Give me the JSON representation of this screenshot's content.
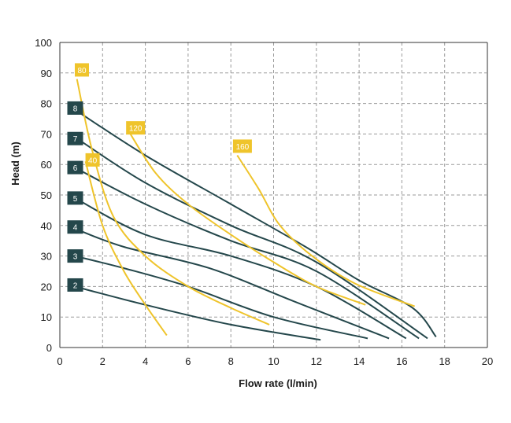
{
  "chart_data": {
    "type": "line",
    "title": "",
    "xlabel": "Flow rate (l/min)",
    "ylabel": "Head (m)",
    "xlim": [
      0,
      20
    ],
    "ylim": [
      0,
      100
    ],
    "x_ticks": [
      0,
      2,
      4,
      6,
      8,
      10,
      12,
      14,
      16,
      18,
      20
    ],
    "y_ticks": [
      0,
      10,
      20,
      30,
      40,
      50,
      60,
      70,
      80,
      90,
      100
    ],
    "grid": true,
    "colors": {
      "pressure": "#24474b",
      "air": "#efc42b",
      "grid": "#9a9a9a",
      "axis": "#333333"
    },
    "pressure_curves": [
      {
        "name": "2",
        "label_pos": [
          0.35,
          20.5
        ],
        "points": [
          [
            0.7,
            20
          ],
          [
            4,
            14
          ],
          [
            8,
            7.5
          ],
          [
            12.2,
            2.5
          ]
        ]
      },
      {
        "name": "3",
        "label_pos": [
          0.35,
          30
        ],
        "points": [
          [
            0.7,
            30
          ],
          [
            3,
            26
          ],
          [
            6,
            20
          ],
          [
            10,
            10
          ],
          [
            14.4,
            3
          ]
        ]
      },
      {
        "name": "4",
        "label_pos": [
          0.35,
          39.5
        ],
        "points": [
          [
            0.7,
            39
          ],
          [
            3,
            33
          ],
          [
            7,
            26
          ],
          [
            11,
            15
          ],
          [
            15.4,
            3
          ]
        ]
      },
      {
        "name": "5",
        "label_pos": [
          0.35,
          49
        ],
        "points": [
          [
            0.7,
            49
          ],
          [
            4,
            37
          ],
          [
            8,
            30
          ],
          [
            12,
            20
          ],
          [
            16.2,
            3
          ]
        ]
      },
      {
        "name": "6",
        "label_pos": [
          0.35,
          59
        ],
        "points": [
          [
            0.7,
            59
          ],
          [
            4,
            47
          ],
          [
            8,
            35
          ],
          [
            12,
            25
          ],
          [
            16.8,
            3
          ]
        ]
      },
      {
        "name": "7",
        "label_pos": [
          0.35,
          68.5
        ],
        "points": [
          [
            0.7,
            69
          ],
          [
            4,
            54
          ],
          [
            8,
            40
          ],
          [
            12,
            28
          ],
          [
            17.2,
            3
          ]
        ]
      },
      {
        "name": "8",
        "label_pos": [
          0.35,
          78.5
        ],
        "points": [
          [
            0.7,
            78
          ],
          [
            4,
            63
          ],
          [
            8,
            47
          ],
          [
            11.5,
            33
          ],
          [
            14,
            22
          ],
          [
            16.5,
            13
          ],
          [
            17.6,
            3.5
          ]
        ]
      }
    ],
    "air_curves": [
      {
        "name": "40",
        "label_pos": [
          1.2,
          61.5
        ],
        "points": [
          [
            1.2,
            61
          ],
          [
            2,
            40
          ],
          [
            3,
            25
          ],
          [
            4,
            14
          ],
          [
            5,
            4
          ]
        ]
      },
      {
        "name": "80",
        "label_pos": [
          0.7,
          91
        ],
        "points": [
          [
            0.8,
            88
          ],
          [
            1.5,
            65
          ],
          [
            2.5,
            43
          ],
          [
            4,
            30
          ],
          [
            6,
            20
          ],
          [
            8,
            13
          ],
          [
            9.8,
            7.5
          ]
        ]
      },
      {
        "name": "120",
        "label_pos": [
          3.1,
          72
        ],
        "points": [
          [
            3.3,
            70
          ],
          [
            4.5,
            57
          ],
          [
            6,
            47
          ],
          [
            8,
            37
          ],
          [
            10,
            28
          ],
          [
            12,
            20
          ],
          [
            14.3,
            14
          ]
        ]
      },
      {
        "name": "160",
        "label_pos": [
          8.1,
          66
        ],
        "points": [
          [
            8.3,
            63
          ],
          [
            9.3,
            52
          ],
          [
            10.3,
            40
          ],
          [
            11.8,
            30
          ],
          [
            13.8,
            21
          ],
          [
            16.6,
            13.5
          ]
        ]
      }
    ]
  }
}
